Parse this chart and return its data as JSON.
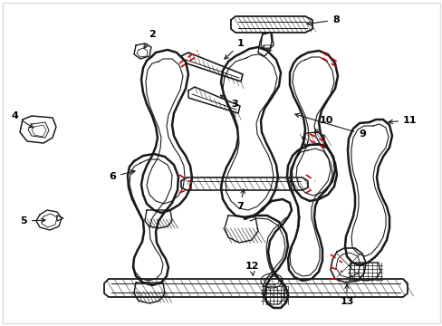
{
  "background_color": "#ffffff",
  "line_color": "#1a1a1a",
  "red_dash_color": "#cc0000",
  "callout_color": "#000000",
  "fig_width": 4.89,
  "fig_height": 3.6,
  "dpi": 100,
  "border_color": "#dddddd",
  "parts": {
    "labels": [
      "1",
      "2",
      "3",
      "4",
      "5",
      "6",
      "7",
      "8",
      "9",
      "10",
      "11",
      "12",
      "13"
    ]
  }
}
